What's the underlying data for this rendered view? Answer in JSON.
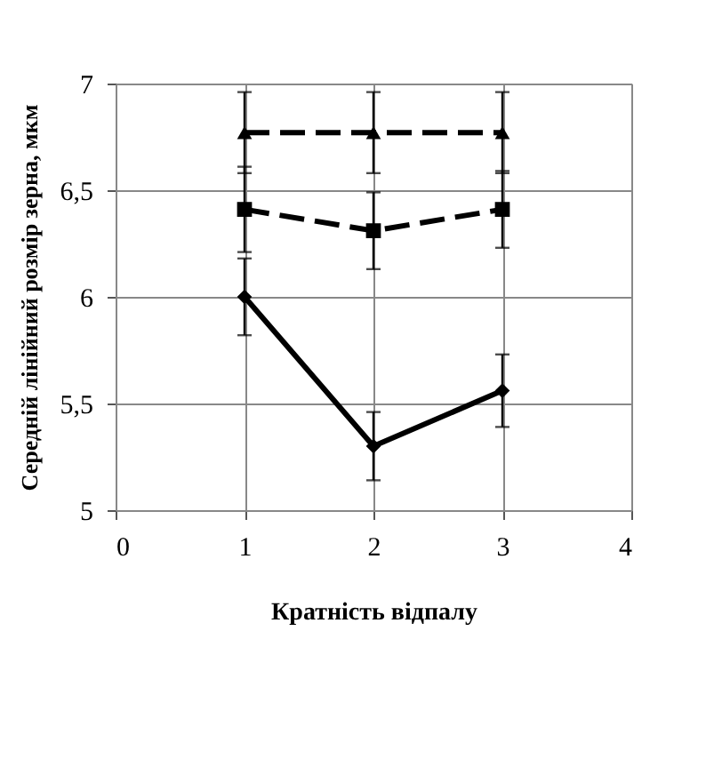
{
  "chart_data": {
    "type": "line",
    "xlabel": "Кратність відпалу",
    "ylabel": "Середній лінійний розмір зерна, мкм",
    "x": [
      1,
      2,
      3
    ],
    "series": [
      {
        "color": "#000000",
        "values": [
          6.77,
          6.77,
          6.77
        ],
        "errors": [
          0.19,
          0.19,
          0.19
        ],
        "marker": "triangle",
        "line_style": "dashed"
      },
      {
        "color": "#000000",
        "values": [
          6.41,
          6.31,
          6.41
        ],
        "errors": [
          0.2,
          0.18,
          0.18
        ],
        "marker": "square",
        "line_style": "dashed"
      },
      {
        "color": "#000000",
        "values": [
          6.0,
          5.3,
          5.56
        ],
        "errors": [
          0.18,
          0.16,
          0.17
        ],
        "marker": "diamond",
        "line_style": "solid"
      }
    ],
    "xlim": [
      0,
      4
    ],
    "xticks": [
      0,
      1,
      2,
      3,
      4
    ],
    "ylim": [
      5,
      7
    ],
    "yticks": [
      5,
      {
        "value": 5.5,
        "label": "5,5"
      },
      6,
      {
        "value": 6.5,
        "label": "6,5"
      },
      7
    ],
    "grid": true
  }
}
